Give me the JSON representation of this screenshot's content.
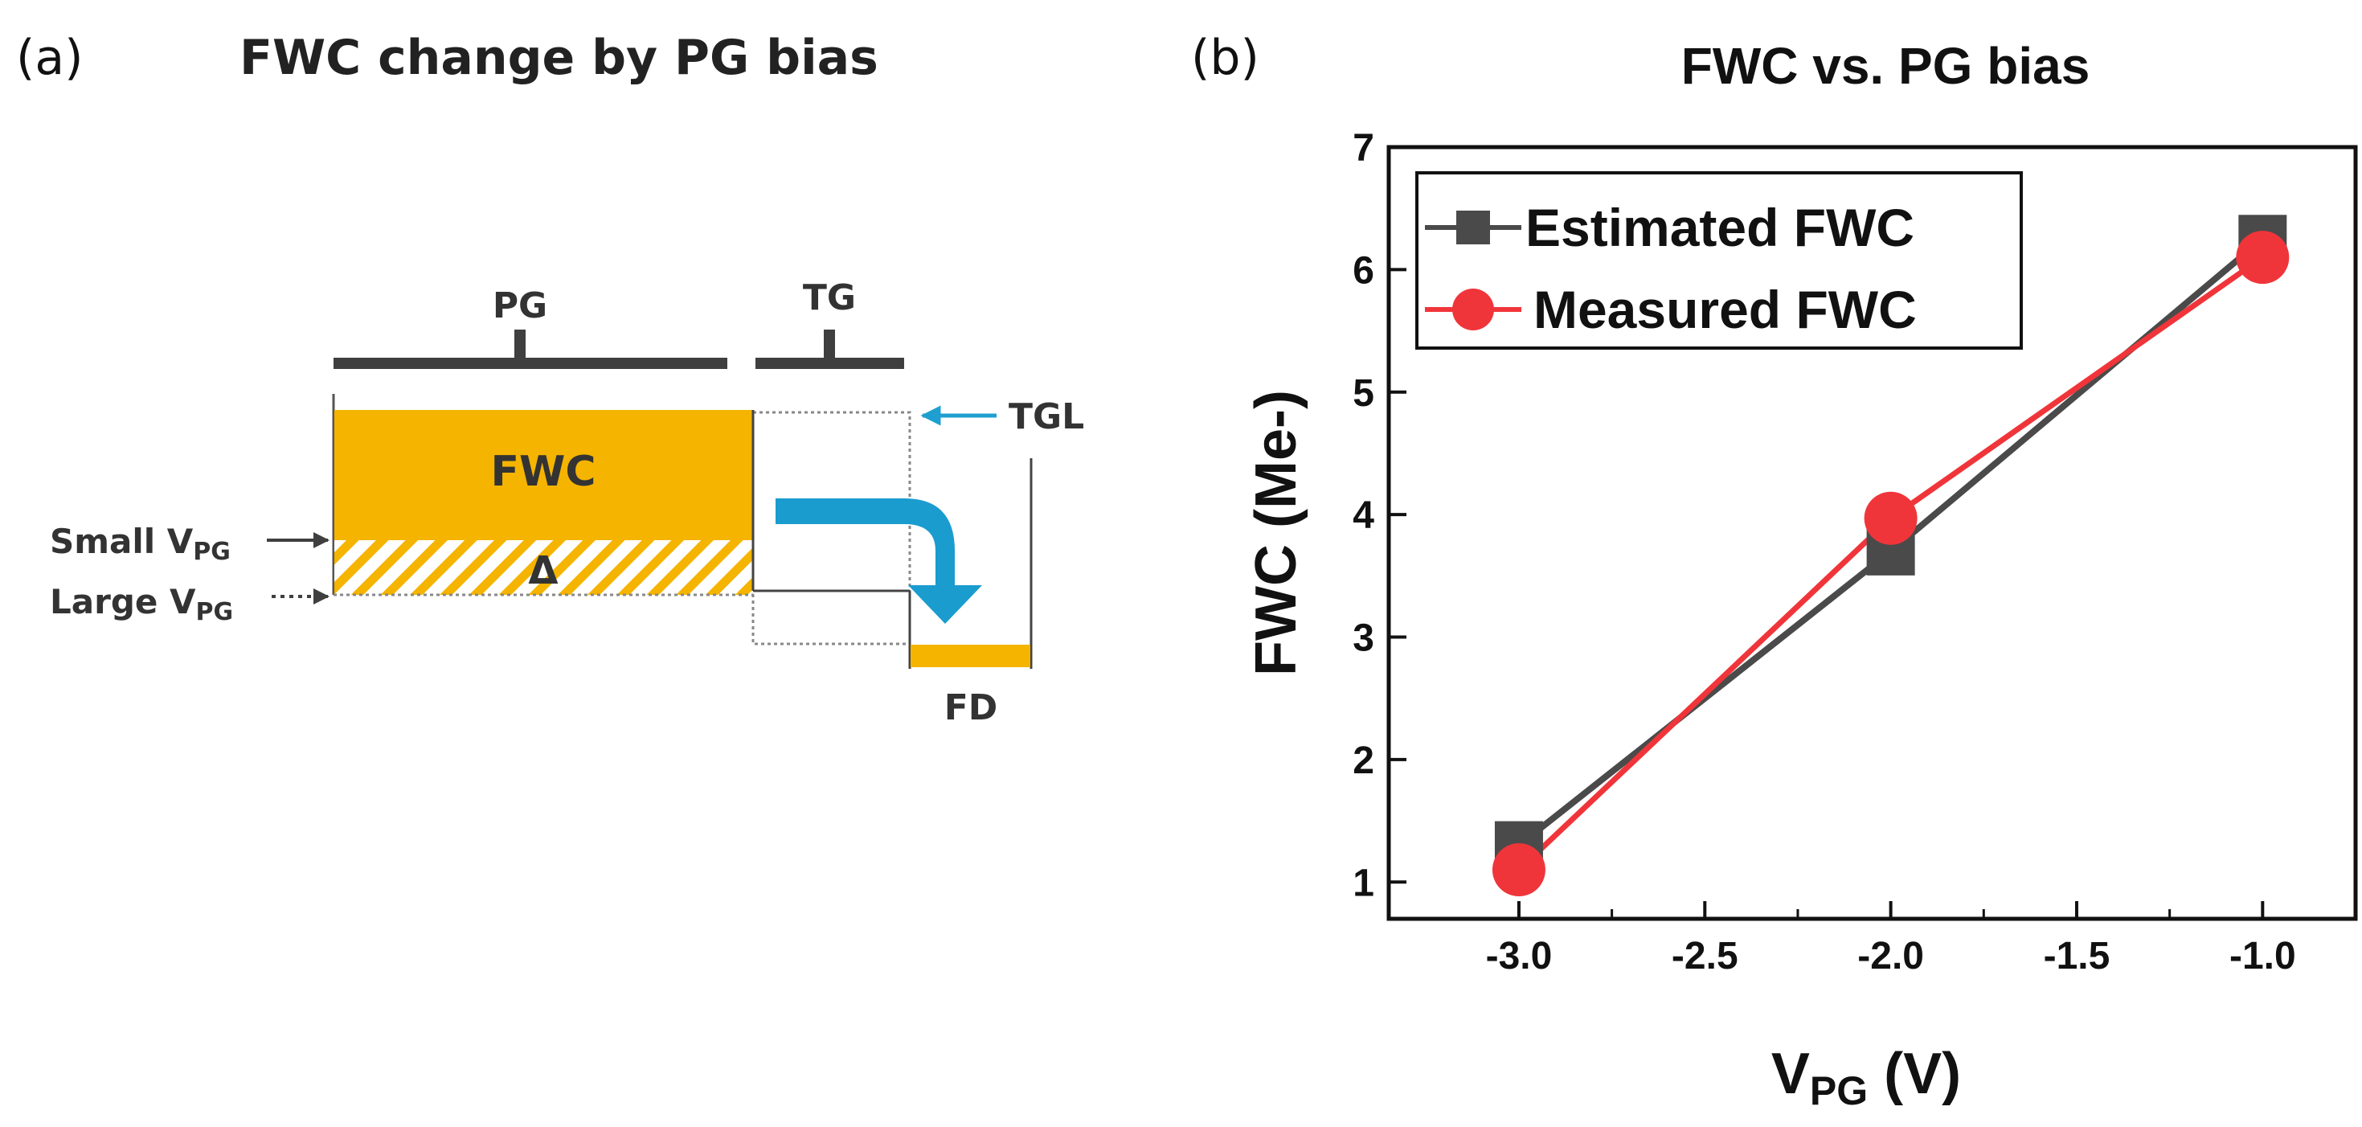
{
  "panel_a": {
    "label": "(a)",
    "title": "FWC change by PG bias",
    "pg_label": "PG",
    "tg_label": "TG",
    "tgl_label": "TGL",
    "fwc_label": "FWC",
    "delta_label": "Δ",
    "fd_label": "FD",
    "small_vpg_main": "Small V",
    "small_vpg_sub": "PG",
    "large_vpg_main": "Large V",
    "large_vpg_sub": "PG",
    "colors": {
      "fill": "#f5b400",
      "arrow": "#1a9ccf",
      "bar": "#3f3f3f",
      "tgl_arrow": "#1e9fd0"
    }
  },
  "panel_b": {
    "label": "(b)",
    "chart_data": {
      "type": "line",
      "title": "FWC vs. PG bias",
      "xlabel_main": "V",
      "xlabel_sub": "PG",
      "xlabel_unit": " (V)",
      "ylabel": "FWC (Me-)",
      "xlim": [
        -3.35,
        -0.75
      ],
      "ylim": [
        0.7,
        7.0
      ],
      "x_ticks": [
        -3.0,
        -2.5,
        -2.0,
        -1.5,
        -1.0
      ],
      "x_tick_labels": [
        "-3.0",
        "-2.5",
        "-2.0",
        "-1.5",
        "-1.0"
      ],
      "y_ticks": [
        1,
        2,
        3,
        4,
        5,
        6,
        7
      ],
      "y_tick_labels": [
        "1",
        "2",
        "3",
        "4",
        "5",
        "6",
        "7"
      ],
      "x": [
        -3.0,
        -2.0,
        -1.0
      ],
      "series": [
        {
          "name": "Estimated FWC",
          "marker": "square",
          "color": "#4a4a4a",
          "values": [
            1.3,
            3.7,
            6.25
          ]
        },
        {
          "name": "Measured FWC",
          "marker": "circle",
          "color": "#f0353a",
          "values": [
            1.1,
            3.97,
            6.1
          ]
        }
      ],
      "legend": "top-left"
    }
  }
}
